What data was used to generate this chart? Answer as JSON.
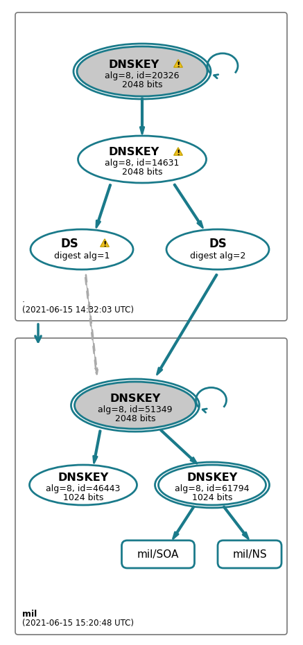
{
  "teal": "#1a7a8a",
  "gray_fill": "#c8c8c8",
  "white_fill": "#ffffff",
  "warning_yellow": "#f0c020",
  "warning_border": "#c0a000",
  "dashed_color": "#aaaaaa",
  "box_edge": "#555555",
  "box1_dot": ".",
  "box1_timestamp": "(2021-06-15 14:32:03 UTC)",
  "box2_label": "mil",
  "box2_timestamp": "(2021-06-15 15:20:48 UTC)",
  "node1_title": "DNSKEY",
  "node1_sub1": "alg=8, id=20326",
  "node1_sub2": "2048 bits",
  "node1_fill": "#c8c8c8",
  "node1_has_warning": true,
  "node1_double": true,
  "node2_title": "DNSKEY",
  "node2_sub1": "alg=8, id=14631",
  "node2_sub2": "2048 bits",
  "node2_fill": "#ffffff",
  "node2_has_warning": true,
  "node2_double": false,
  "node3_title": "DS",
  "node3_sub1": "digest alg=1",
  "node3_fill": "#ffffff",
  "node3_has_warning": true,
  "node4_title": "DS",
  "node4_sub1": "digest alg=2",
  "node4_fill": "#ffffff",
  "node4_has_warning": false,
  "node5_title": "DNSKEY",
  "node5_sub1": "alg=8, id=51349",
  "node5_sub2": "2048 bits",
  "node5_fill": "#c8c8c8",
  "node5_has_warning": false,
  "node5_double": true,
  "node6_title": "DNSKEY",
  "node6_sub1": "alg=8, id=46443",
  "node6_sub2": "1024 bits",
  "node6_fill": "#ffffff",
  "node6_has_warning": false,
  "node6_double": false,
  "node7_title": "DNSKEY",
  "node7_sub1": "alg=8, id=61794",
  "node7_sub2": "1024 bits",
  "node7_fill": "#ffffff",
  "node7_has_warning": false,
  "node7_double": true,
  "node8_title": "mil/SOA",
  "node8_fill": "#ffffff",
  "node9_title": "mil/NS",
  "node9_fill": "#ffffff"
}
